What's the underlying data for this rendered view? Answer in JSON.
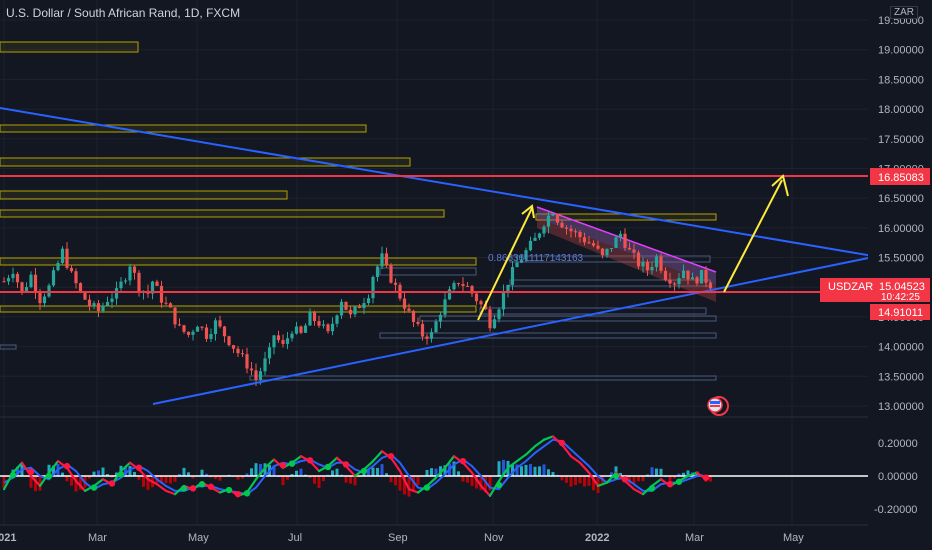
{
  "header": {
    "title": "U.S. Dollar / South African Rand, 1D, FXCM",
    "currency_label": "ZAR"
  },
  "colors": {
    "background": "#131722",
    "grid": "#1e222d",
    "up_candle": "#26a69a",
    "down_candle": "#ef5350",
    "trend_line": "#2962ff",
    "resistance_line": "#f23645",
    "zone_box": "#c8b400",
    "arrow": "#ffeb3b",
    "channel": "#e040fb",
    "osc_green": "#00c853",
    "osc_red": "#ff1744",
    "osc_blue": "#2962ff"
  },
  "price_axis": {
    "ticks": [
      "19.50000",
      "19.00000",
      "18.50000",
      "18.00000",
      "17.50000",
      "17.00000",
      "16.50000",
      "16.00000",
      "15.50000",
      "15.00000",
      "14.50000",
      "14.00000",
      "13.50000",
      "13.00000"
    ]
  },
  "osc_axis": {
    "ticks": [
      "0.20000",
      "0.00000",
      "-0.20000"
    ]
  },
  "time_axis": {
    "ticks": [
      "2021",
      "Mar",
      "May",
      "Jul",
      "Sep",
      "Nov",
      "2022",
      "Mar",
      "May"
    ]
  },
  "price_tags": {
    "resistance": "16.85083",
    "symbol": "USDZAR",
    "last_price": "15.04523",
    "countdown": "10:42:25",
    "support": "14.91011"
  },
  "fib_label": "0.8663611117143163",
  "chart_data": {
    "type": "candlestick",
    "title": "U.S. Dollar / South African Rand, 1D, FXCM",
    "symbol": "USDZAR",
    "ylim": [
      12.8,
      19.6
    ],
    "resistance_level": 16.85083,
    "support_level": 14.91011,
    "last_price": 15.04523,
    "oscillator_ylim": [
      -0.3,
      0.3
    ],
    "close_path": [
      [
        0,
        15.1
      ],
      [
        2,
        15.3
      ],
      [
        4,
        14.9
      ],
      [
        6,
        15.2
      ],
      [
        8,
        14.8
      ],
      [
        10,
        15.0
      ],
      [
        12,
        15.4
      ],
      [
        13,
        15.6
      ],
      [
        15,
        15.2
      ],
      [
        17,
        14.9
      ],
      [
        19,
        14.7
      ],
      [
        21,
        14.6
      ],
      [
        23,
        14.8
      ],
      [
        25,
        14.9
      ],
      [
        27,
        15.2
      ],
      [
        28,
        15.4
      ],
      [
        30,
        15.0
      ],
      [
        32,
        14.9
      ],
      [
        33,
        15.1
      ],
      [
        35,
        14.8
      ],
      [
        37,
        14.6
      ],
      [
        39,
        14.3
      ],
      [
        41,
        14.2
      ],
      [
        43,
        14.4
      ],
      [
        45,
        14.2
      ],
      [
        47,
        14.4
      ],
      [
        49,
        14.2
      ],
      [
        51,
        14.0
      ],
      [
        53,
        13.8
      ],
      [
        55,
        13.6
      ],
      [
        56,
        13.45
      ],
      [
        57,
        13.6
      ],
      [
        59,
        13.9
      ],
      [
        60,
        14.2
      ],
      [
        62,
        14.0
      ],
      [
        64,
        14.3
      ],
      [
        66,
        14.2
      ],
      [
        68,
        14.5
      ],
      [
        70,
        14.4
      ],
      [
        72,
        14.2
      ],
      [
        74,
        14.6
      ],
      [
        75,
        14.8
      ],
      [
        77,
        14.5
      ],
      [
        79,
        14.7
      ],
      [
        81,
        14.9
      ],
      [
        82,
        15.2
      ],
      [
        84,
        15.5
      ],
      [
        85,
        15.3
      ],
      [
        87,
        15.0
      ],
      [
        89,
        14.7
      ],
      [
        91,
        14.4
      ],
      [
        93,
        14.2
      ],
      [
        95,
        14.2
      ],
      [
        97,
        14.6
      ],
      [
        99,
        14.9
      ],
      [
        101,
        15.1
      ],
      [
        103,
        15.0
      ],
      [
        105,
        14.8
      ],
      [
        107,
        14.6
      ],
      [
        108,
        14.4
      ],
      [
        110,
        14.7
      ],
      [
        112,
        15.1
      ],
      [
        114,
        15.4
      ],
      [
        116,
        15.6
      ],
      [
        118,
        15.8
      ],
      [
        120,
        16.1
      ],
      [
        122,
        16.3
      ],
      [
        123,
        16.15
      ],
      [
        125,
        16.0
      ],
      [
        127,
        15.9
      ],
      [
        129,
        15.8
      ],
      [
        131,
        15.7
      ],
      [
        133,
        15.5
      ],
      [
        135,
        15.7
      ],
      [
        137,
        15.9
      ],
      [
        139,
        15.6
      ],
      [
        141,
        15.4
      ],
      [
        143,
        15.3
      ],
      [
        145,
        15.5
      ],
      [
        147,
        15.2
      ],
      [
        149,
        15.1
      ],
      [
        151,
        15.3
      ],
      [
        153,
        15.1
      ],
      [
        155,
        15.2
      ],
      [
        157,
        15.05
      ]
    ],
    "osc_fast": [
      [
        0,
        -0.08
      ],
      [
        2,
        0.02
      ],
      [
        4,
        0.08
      ],
      [
        6,
        0.0
      ],
      [
        8,
        -0.06
      ],
      [
        10,
        0.02
      ],
      [
        12,
        0.09
      ],
      [
        14,
        0.05
      ],
      [
        16,
        -0.03
      ],
      [
        18,
        -0.09
      ],
      [
        20,
        -0.06
      ],
      [
        22,
        -0.02
      ],
      [
        24,
        -0.05
      ],
      [
        26,
        0.03
      ],
      [
        28,
        0.08
      ],
      [
        30,
        0.04
      ],
      [
        32,
        -0.02
      ],
      [
        34,
        -0.05
      ],
      [
        36,
        -0.09
      ],
      [
        38,
        -0.11
      ],
      [
        40,
        -0.06
      ],
      [
        42,
        -0.08
      ],
      [
        44,
        -0.04
      ],
      [
        46,
        -0.07
      ],
      [
        48,
        -0.1
      ],
      [
        50,
        -0.08
      ],
      [
        52,
        -0.12
      ],
      [
        54,
        -0.1
      ],
      [
        56,
        -0.02
      ],
      [
        58,
        0.05
      ],
      [
        60,
        0.1
      ],
      [
        62,
        0.05
      ],
      [
        64,
        0.08
      ],
      [
        66,
        0.12
      ],
      [
        68,
        0.09
      ],
      [
        70,
        0.03
      ],
      [
        72,
        0.06
      ],
      [
        74,
        0.11
      ],
      [
        76,
        0.06
      ],
      [
        78,
        0.0
      ],
      [
        80,
        0.04
      ],
      [
        82,
        0.09
      ],
      [
        84,
        0.15
      ],
      [
        86,
        0.11
      ],
      [
        88,
        0.03
      ],
      [
        90,
        -0.08
      ],
      [
        92,
        -0.1
      ],
      [
        94,
        -0.06
      ],
      [
        96,
        -0.01
      ],
      [
        98,
        0.05
      ],
      [
        100,
        0.12
      ],
      [
        102,
        0.08
      ],
      [
        104,
        0.02
      ],
      [
        106,
        -0.06
      ],
      [
        108,
        -0.12
      ],
      [
        110,
        -0.03
      ],
      [
        112,
        0.05
      ],
      [
        114,
        0.09
      ],
      [
        116,
        0.13
      ],
      [
        118,
        0.18
      ],
      [
        120,
        0.22
      ],
      [
        122,
        0.24
      ],
      [
        124,
        0.19
      ],
      [
        126,
        0.12
      ],
      [
        128,
        0.08
      ],
      [
        130,
        0.02
      ],
      [
        132,
        -0.06
      ],
      [
        134,
        -0.04
      ],
      [
        136,
        0.02
      ],
      [
        138,
        -0.03
      ],
      [
        140,
        -0.08
      ],
      [
        142,
        -0.11
      ],
      [
        144,
        -0.06
      ],
      [
        146,
        -0.02
      ],
      [
        148,
        -0.06
      ],
      [
        150,
        -0.03
      ],
      [
        152,
        0.0
      ],
      [
        154,
        0.02
      ],
      [
        156,
        -0.02
      ]
    ],
    "osc_slow": [
      [
        0,
        -0.04
      ],
      [
        2,
        -0.01
      ],
      [
        4,
        0.04
      ],
      [
        6,
        0.05
      ],
      [
        8,
        0.0
      ],
      [
        10,
        -0.02
      ],
      [
        12,
        0.04
      ],
      [
        14,
        0.07
      ],
      [
        16,
        0.03
      ],
      [
        18,
        -0.04
      ],
      [
        20,
        -0.08
      ],
      [
        22,
        -0.05
      ],
      [
        24,
        -0.04
      ],
      [
        26,
        -0.01
      ],
      [
        28,
        0.04
      ],
      [
        30,
        0.06
      ],
      [
        32,
        0.03
      ],
      [
        34,
        -0.02
      ],
      [
        36,
        -0.06
      ],
      [
        38,
        -0.09
      ],
      [
        40,
        -0.09
      ],
      [
        42,
        -0.07
      ],
      [
        44,
        -0.06
      ],
      [
        46,
        -0.06
      ],
      [
        48,
        -0.08
      ],
      [
        50,
        -0.09
      ],
      [
        52,
        -0.1
      ],
      [
        54,
        -0.11
      ],
      [
        56,
        -0.07
      ],
      [
        58,
        0.0
      ],
      [
        60,
        0.06
      ],
      [
        62,
        0.08
      ],
      [
        64,
        0.07
      ],
      [
        66,
        0.09
      ],
      [
        68,
        0.1
      ],
      [
        70,
        0.07
      ],
      [
        72,
        0.05
      ],
      [
        74,
        0.08
      ],
      [
        76,
        0.08
      ],
      [
        78,
        0.04
      ],
      [
        80,
        0.02
      ],
      [
        82,
        0.06
      ],
      [
        84,
        0.11
      ],
      [
        86,
        0.13
      ],
      [
        88,
        0.08
      ],
      [
        90,
        0.0
      ],
      [
        92,
        -0.07
      ],
      [
        94,
        -0.08
      ],
      [
        96,
        -0.04
      ],
      [
        98,
        0.01
      ],
      [
        100,
        0.07
      ],
      [
        102,
        0.1
      ],
      [
        104,
        0.06
      ],
      [
        106,
        0.0
      ],
      [
        108,
        -0.07
      ],
      [
        110,
        -0.08
      ],
      [
        112,
        -0.01
      ],
      [
        114,
        0.05
      ],
      [
        116,
        0.09
      ],
      [
        118,
        0.14
      ],
      [
        120,
        0.18
      ],
      [
        122,
        0.22
      ],
      [
        124,
        0.21
      ],
      [
        126,
        0.16
      ],
      [
        128,
        0.11
      ],
      [
        130,
        0.06
      ],
      [
        132,
        0.0
      ],
      [
        134,
        -0.04
      ],
      [
        136,
        -0.02
      ],
      [
        138,
        -0.01
      ],
      [
        140,
        -0.05
      ],
      [
        142,
        -0.09
      ],
      [
        144,
        -0.09
      ],
      [
        146,
        -0.05
      ],
      [
        148,
        -0.04
      ],
      [
        150,
        -0.04
      ],
      [
        152,
        -0.02
      ],
      [
        154,
        0.0
      ],
      [
        156,
        0.0
      ]
    ]
  }
}
